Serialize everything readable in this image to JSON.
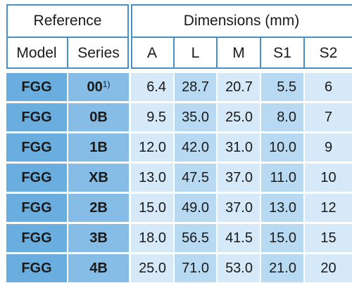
{
  "header": {
    "reference": "Reference",
    "dimensions": "Dimensions (mm)",
    "columns": [
      "Model",
      "Series",
      "A",
      "L",
      "M",
      "S1",
      "S2"
    ]
  },
  "colors": {
    "border": "#4a90c8",
    "model_col": "#6aaedf",
    "series_col": "#86bde6",
    "data_light": "#d6e9f8",
    "data_mid": "#b8d9f2"
  },
  "rows": [
    {
      "model": "FGG",
      "series": "00",
      "note": "1)",
      "A": "6.4",
      "L": "28.7",
      "M": "20.7",
      "S1": "5.5",
      "S2": "6"
    },
    {
      "model": "FGG",
      "series": "0B",
      "note": "",
      "A": "9.5",
      "L": "35.0",
      "M": "25.0",
      "S1": "8.0",
      "S2": "7"
    },
    {
      "model": "FGG",
      "series": "1B",
      "note": "",
      "A": "12.0",
      "L": "42.0",
      "M": "31.0",
      "S1": "10.0",
      "S2": "9"
    },
    {
      "model": "FGG",
      "series": "XB",
      "note": "",
      "A": "13.0",
      "L": "47.5",
      "M": "37.0",
      "S1": "11.0",
      "S2": "10"
    },
    {
      "model": "FGG",
      "series": "2B",
      "note": "",
      "A": "15.0",
      "L": "49.0",
      "M": "37.0",
      "S1": "13.0",
      "S2": "12"
    },
    {
      "model": "FGG",
      "series": "3B",
      "note": "",
      "A": "18.0",
      "L": "56.5",
      "M": "41.5",
      "S1": "15.0",
      "S2": "15"
    },
    {
      "model": "FGG",
      "series": "4B",
      "note": "",
      "A": "25.0",
      "L": "71.0",
      "M": "53.0",
      "S1": "21.0",
      "S2": "20"
    }
  ]
}
